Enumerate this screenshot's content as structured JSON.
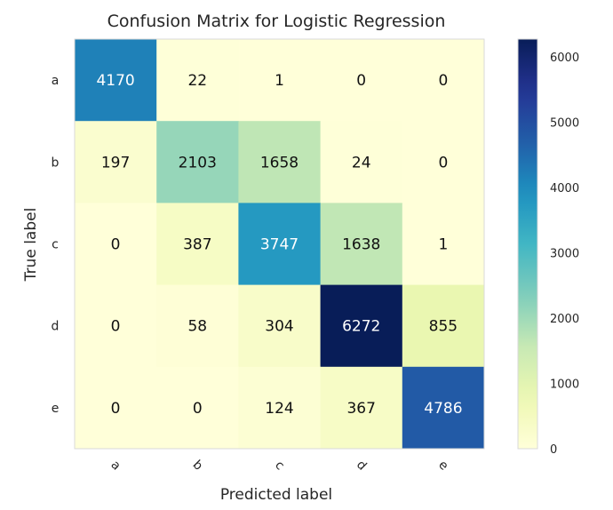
{
  "chart_data": {
    "type": "heatmap",
    "title": "Confusion Matrix for Logistic Regression",
    "xlabel": "Predicted label",
    "ylabel": "True label",
    "x_categories": [
      "a",
      "b",
      "c",
      "d",
      "e"
    ],
    "y_categories": [
      "a",
      "b",
      "c",
      "d",
      "e"
    ],
    "values": [
      [
        4170,
        22,
        1,
        0,
        0
      ],
      [
        197,
        2103,
        1658,
        24,
        0
      ],
      [
        0,
        387,
        3747,
        1638,
        1
      ],
      [
        0,
        58,
        304,
        6272,
        855
      ],
      [
        0,
        0,
        124,
        367,
        4786
      ]
    ],
    "colormap": "YlGnBu",
    "colorbar": {
      "range": [
        0,
        6272
      ],
      "ticks": [
        0,
        1000,
        2000,
        3000,
        4000,
        5000,
        6000
      ]
    },
    "grid": false
  }
}
